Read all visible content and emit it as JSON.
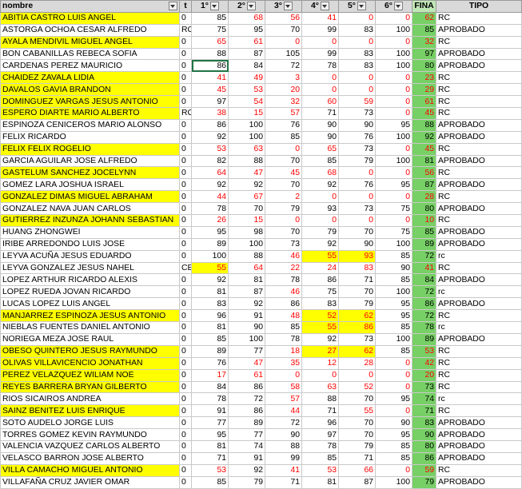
{
  "headers": {
    "nombre": "nombre",
    "t": "t",
    "c1": "1°",
    "c2": "2°",
    "c3": "3°",
    "c4": "4°",
    "c5": "5°",
    "c6": "6°",
    "final": "FINA",
    "tipo": "TIPO"
  },
  "rows": [
    {
      "name": "ABITIA CASTRO LUIS ANGEL",
      "hl": true,
      "t": "0",
      "v": [
        "85",
        "68",
        "56",
        "41",
        "0",
        "0"
      ],
      "vr": [
        false,
        true,
        true,
        true,
        true,
        true
      ],
      "f": "62",
      "fr": true,
      "tipo": "RC"
    },
    {
      "name": "ASTORGA OCHOA CESAR ALFREDO",
      "hl": false,
      "t": "RC",
      "v": [
        "75",
        "95",
        "70",
        "99",
        "83",
        "100"
      ],
      "vr": [
        false,
        false,
        false,
        false,
        false,
        false
      ],
      "f": "85",
      "fr": false,
      "tipo": "APROBADO"
    },
    {
      "name": "AYALA MENDIVIL MIGUEL ANGEL",
      "hl": true,
      "t": "0",
      "v": [
        "65",
        "61",
        "0",
        "0",
        "0",
        "0"
      ],
      "vr": [
        true,
        true,
        true,
        true,
        true,
        true
      ],
      "f": "32",
      "fr": true,
      "tipo": "RC"
    },
    {
      "name": "BON CABANILLAS REBECA SOFIA",
      "hl": false,
      "t": "0",
      "v": [
        "88",
        "87",
        "105",
        "99",
        "83",
        "100"
      ],
      "vr": [
        false,
        false,
        false,
        false,
        false,
        false
      ],
      "f": "97",
      "fr": false,
      "tipo": "APROBADO"
    },
    {
      "name": "CARDENAS PEREZ MAURICIO",
      "hl": false,
      "t": "0",
      "v": [
        "86",
        "84",
        "72",
        "78",
        "83",
        "100"
      ],
      "vr": [
        false,
        false,
        false,
        false,
        false,
        false
      ],
      "f": "80",
      "fr": false,
      "tipo": "APROBADO"
    },
    {
      "name": "CHAIDEZ ZAVALA LIDIA",
      "hl": true,
      "t": "0",
      "v": [
        "41",
        "49",
        "3",
        "0",
        "0",
        "0"
      ],
      "vr": [
        true,
        true,
        true,
        true,
        true,
        true
      ],
      "f": "23",
      "fr": true,
      "tipo": "RC"
    },
    {
      "name": "DAVALOS GAVIA BRANDON",
      "hl": true,
      "t": "0",
      "v": [
        "45",
        "53",
        "20",
        "0",
        "0",
        "0"
      ],
      "vr": [
        true,
        true,
        true,
        true,
        true,
        true
      ],
      "f": "29",
      "fr": true,
      "tipo": "RC"
    },
    {
      "name": "DOMINGUEZ VARGAS JESUS ANTONIO",
      "hl": true,
      "t": "0",
      "v": [
        "97",
        "54",
        "32",
        "60",
        "59",
        "0"
      ],
      "vr": [
        false,
        true,
        true,
        true,
        true,
        true
      ],
      "f": "61",
      "fr": true,
      "tipo": "RC"
    },
    {
      "name": "ESPERO DIARTE MARIO ALBERTO",
      "hl": true,
      "t": "RC",
      "v": [
        "38",
        "15",
        "57",
        "71",
        "73",
        "0"
      ],
      "vr": [
        true,
        true,
        true,
        false,
        false,
        true
      ],
      "f": "45",
      "fr": true,
      "tipo": "RC"
    },
    {
      "name": "ESPINOZA CENICEROS MARIO ALONSO",
      "hl": false,
      "t": "0",
      "v": [
        "86",
        "100",
        "76",
        "90",
        "90",
        "95"
      ],
      "vr": [
        false,
        false,
        false,
        false,
        false,
        false
      ],
      "f": "88",
      "fr": false,
      "tipo": "APROBADO"
    },
    {
      "name": "FELIX RICARDO",
      "hl": false,
      "t": "0",
      "v": [
        "92",
        "100",
        "85",
        "90",
        "76",
        "100"
      ],
      "vr": [
        false,
        false,
        false,
        false,
        false,
        false
      ],
      "f": "92",
      "fr": false,
      "tipo": "APROBADO"
    },
    {
      "name": "FELIX FELIX ROGELIO",
      "hl": true,
      "t": "0",
      "v": [
        "53",
        "63",
        "0",
        "65",
        "73",
        "0"
      ],
      "vr": [
        true,
        true,
        true,
        true,
        false,
        true
      ],
      "f": "45",
      "fr": true,
      "tipo": "RC"
    },
    {
      "name": "GARCIA AGUILAR JOSE ALFREDO",
      "hl": false,
      "t": "0",
      "v": [
        "82",
        "88",
        "70",
        "85",
        "79",
        "100"
      ],
      "vr": [
        false,
        false,
        false,
        false,
        false,
        false
      ],
      "f": "81",
      "fr": false,
      "tipo": "APROBADO"
    },
    {
      "name": "GASTELUM SANCHEZ JOCELYNN",
      "hl": true,
      "t": "0",
      "v": [
        "64",
        "47",
        "45",
        "68",
        "0",
        "0"
      ],
      "vr": [
        true,
        true,
        true,
        true,
        true,
        true
      ],
      "f": "56",
      "fr": true,
      "tipo": "RC"
    },
    {
      "name": "GOMEZ LARA JOSHUA ISRAEL",
      "hl": false,
      "t": "0",
      "v": [
        "92",
        "92",
        "70",
        "92",
        "76",
        "95"
      ],
      "vr": [
        false,
        false,
        false,
        false,
        false,
        false
      ],
      "f": "87",
      "fr": false,
      "tipo": "APROBADO"
    },
    {
      "name": "GONZALEZ DIMAS MIGUEL ABRAHAM",
      "hl": true,
      "t": "0",
      "v": [
        "44",
        "67",
        "2",
        "0",
        "0",
        "0"
      ],
      "vr": [
        true,
        true,
        true,
        true,
        true,
        true
      ],
      "f": "28",
      "fr": true,
      "tipo": "RC"
    },
    {
      "name": "GONZALEZ NAVA JUAN CARLOS",
      "hl": false,
      "t": "0",
      "v": [
        "78",
        "70",
        "79",
        "93",
        "73",
        "75"
      ],
      "vr": [
        false,
        false,
        false,
        false,
        false,
        false
      ],
      "f": "80",
      "fr": false,
      "tipo": "APROBADO"
    },
    {
      "name": "GUTIERREZ INZUNZA JOHANN SEBASTIAN",
      "hl": true,
      "t": "0",
      "v": [
        "26",
        "15",
        "0",
        "0",
        "0",
        "0"
      ],
      "vr": [
        true,
        true,
        true,
        true,
        true,
        true
      ],
      "f": "10",
      "fr": true,
      "tipo": "RC"
    },
    {
      "name": "HUANG ZHONGWEI",
      "hl": false,
      "t": "0",
      "v": [
        "95",
        "98",
        "70",
        "79",
        "70",
        "75"
      ],
      "vr": [
        false,
        false,
        false,
        false,
        false,
        false
      ],
      "f": "85",
      "fr": false,
      "tipo": "APROBADO"
    },
    {
      "name": "IRIBE ARREDONDO LUIS JOSE",
      "hl": false,
      "t": "0",
      "v": [
        "89",
        "100",
        "73",
        "92",
        "90",
        "100"
      ],
      "vr": [
        false,
        false,
        false,
        false,
        false,
        false
      ],
      "f": "89",
      "fr": false,
      "tipo": "APROBADO"
    },
    {
      "name": "LEYVA ACUÑA JESUS EDUARDO",
      "hl": false,
      "t": "0",
      "v": [
        "100",
        "88",
        "46",
        "55",
        "93",
        "85"
      ],
      "vr": [
        false,
        false,
        true,
        true,
        true,
        false
      ],
      "ch": [
        false,
        false,
        false,
        true,
        true,
        false
      ],
      "f": "72",
      "fr": false,
      "tipo": "rc"
    },
    {
      "name": "LEYVA GONZALEZ JESUS NAHEL",
      "hl": false,
      "t": "CE",
      "v": [
        "55",
        "64",
        "22",
        "24",
        "83",
        "90"
      ],
      "vr": [
        true,
        true,
        true,
        true,
        true,
        false
      ],
      "ch": [
        true,
        false,
        false,
        false,
        false,
        false
      ],
      "f": "41",
      "fr": true,
      "tipo": "RC"
    },
    {
      "name": "LOPEZ ARTHUR RICARDO ALEXIS",
      "hl": false,
      "t": "0",
      "v": [
        "92",
        "81",
        "78",
        "86",
        "71",
        "85"
      ],
      "vr": [
        false,
        false,
        false,
        false,
        false,
        false
      ],
      "f": "84",
      "fr": false,
      "tipo": "APROBADO"
    },
    {
      "name": "LOPEZ RUEDA JOVAN RICARDO",
      "hl": false,
      "t": "0",
      "v": [
        "81",
        "87",
        "46",
        "75",
        "70",
        "100"
      ],
      "vr": [
        false,
        false,
        true,
        false,
        false,
        false
      ],
      "f": "72",
      "fr": false,
      "tipo": "rc"
    },
    {
      "name": "LUCAS LOPEZ LUIS ANGEL",
      "hl": false,
      "t": "0",
      "v": [
        "83",
        "92",
        "86",
        "83",
        "79",
        "95"
      ],
      "vr": [
        false,
        false,
        false,
        false,
        false,
        false
      ],
      "f": "86",
      "fr": false,
      "tipo": "APROBADO"
    },
    {
      "name": "MANJARREZ ESPINOZA JESUS ANTONIO",
      "hl": true,
      "t": "0",
      "v": [
        "96",
        "91",
        "48",
        "52",
        "62",
        "95"
      ],
      "vr": [
        false,
        false,
        true,
        true,
        true,
        false
      ],
      "ch": [
        false,
        false,
        false,
        true,
        true,
        false
      ],
      "f": "72",
      "fr": false,
      "tipo": "RC"
    },
    {
      "name": "NIEBLAS FUENTES DANIEL ANTONIO",
      "hl": false,
      "t": "0",
      "v": [
        "81",
        "90",
        "85",
        "55",
        "86",
        "85"
      ],
      "vr": [
        false,
        false,
        false,
        true,
        true,
        false
      ],
      "ch": [
        false,
        false,
        false,
        true,
        true,
        false
      ],
      "f": "78",
      "fr": false,
      "tipo": "rc"
    },
    {
      "name": "NORIEGA MEZA JOSE RAUL",
      "hl": false,
      "t": "0",
      "v": [
        "85",
        "100",
        "78",
        "92",
        "73",
        "100"
      ],
      "vr": [
        false,
        false,
        false,
        false,
        false,
        false
      ],
      "f": "89",
      "fr": false,
      "tipo": "APROBADO"
    },
    {
      "name": "OBESO QUINTERO JESUS RAYMUNDO",
      "hl": true,
      "t": "0",
      "v": [
        "89",
        "77",
        "18",
        "27",
        "62",
        "85"
      ],
      "vr": [
        false,
        false,
        true,
        true,
        true,
        false
      ],
      "ch": [
        false,
        false,
        false,
        true,
        true,
        false
      ],
      "f": "53",
      "fr": true,
      "tipo": "RC"
    },
    {
      "name": "OLIVAS VILLAVICENCIO JONATHAN",
      "hl": true,
      "t": "0",
      "v": [
        "76",
        "47",
        "35",
        "12",
        "28",
        "0"
      ],
      "vr": [
        false,
        true,
        true,
        true,
        true,
        true
      ],
      "f": "42",
      "fr": true,
      "tipo": "RC"
    },
    {
      "name": "PEREZ VELAZQUEZ WILIAM NOE",
      "hl": true,
      "t": "0",
      "v": [
        "17",
        "61",
        "0",
        "0",
        "0",
        "0"
      ],
      "vr": [
        true,
        true,
        true,
        true,
        true,
        true
      ],
      "f": "20",
      "fr": true,
      "tipo": "RC"
    },
    {
      "name": "REYES BARRERA BRYAN GILBERTO",
      "hl": true,
      "t": "0",
      "v": [
        "84",
        "86",
        "58",
        "63",
        "52",
        "0"
      ],
      "vr": [
        false,
        false,
        true,
        true,
        true,
        true
      ],
      "f": "73",
      "fr": false,
      "tipo": "RC"
    },
    {
      "name": "RIOS SICAIROS ANDREA",
      "hl": false,
      "t": "0",
      "v": [
        "78",
        "72",
        "57",
        "88",
        "70",
        "95"
      ],
      "vr": [
        false,
        false,
        true,
        false,
        false,
        false
      ],
      "f": "74",
      "fr": false,
      "tipo": "rc"
    },
    {
      "name": "SAINZ BENITEZ LUIS ENRIQUE",
      "hl": true,
      "t": "0",
      "v": [
        "91",
        "86",
        "44",
        "71",
        "55",
        "0"
      ],
      "vr": [
        false,
        false,
        true,
        false,
        true,
        true
      ],
      "f": "71",
      "fr": false,
      "tipo": "RC"
    },
    {
      "name": "SOTO AUDELO JORGE LUIS",
      "hl": false,
      "t": "0",
      "v": [
        "77",
        "89",
        "72",
        "96",
        "70",
        "90"
      ],
      "vr": [
        false,
        false,
        false,
        false,
        false,
        false
      ],
      "f": "83",
      "fr": false,
      "tipo": "APROBADO"
    },
    {
      "name": "TORRES GOMEZ KEVIN RAYMUNDO",
      "hl": false,
      "t": "0",
      "v": [
        "95",
        "77",
        "90",
        "97",
        "70",
        "95"
      ],
      "vr": [
        false,
        false,
        false,
        false,
        false,
        false
      ],
      "f": "90",
      "fr": false,
      "tipo": "APROBADO"
    },
    {
      "name": "VALENCIA VAZQUEZ CARLOS ALBERTO",
      "hl": false,
      "t": "0",
      "v": [
        "81",
        "74",
        "88",
        "78",
        "79",
        "85"
      ],
      "vr": [
        false,
        false,
        false,
        false,
        false,
        false
      ],
      "f": "80",
      "fr": false,
      "tipo": "APROBADO"
    },
    {
      "name": "VELASCO BARRON JOSE ALBERTO",
      "hl": false,
      "t": "0",
      "v": [
        "71",
        "91",
        "99",
        "85",
        "71",
        "85"
      ],
      "vr": [
        false,
        false,
        false,
        false,
        false,
        false
      ],
      "f": "86",
      "fr": false,
      "tipo": "APROBADO"
    },
    {
      "name": "VILLA CAMACHO MIGUEL ANTONIO",
      "hl": true,
      "t": "0",
      "v": [
        "53",
        "92",
        "41",
        "53",
        "66",
        "0"
      ],
      "vr": [
        true,
        false,
        true,
        true,
        true,
        true
      ],
      "f": "59",
      "fr": true,
      "tipo": "RC"
    },
    {
      "name": "VILLAFAÑA CRUZ JAVIER OMAR",
      "hl": false,
      "t": "0",
      "v": [
        "85",
        "79",
        "71",
        "81",
        "87",
        "100"
      ],
      "vr": [
        false,
        false,
        false,
        false,
        false,
        false
      ],
      "f": "79",
      "fr": false,
      "tipo": "APROBADO"
    }
  ],
  "colors": {
    "yellow": "#ffff00",
    "green": "#77d065",
    "red": "#ff0000",
    "header": "#d9d9d9"
  },
  "icons": {
    "filter": "filter-dropdown-icon"
  }
}
